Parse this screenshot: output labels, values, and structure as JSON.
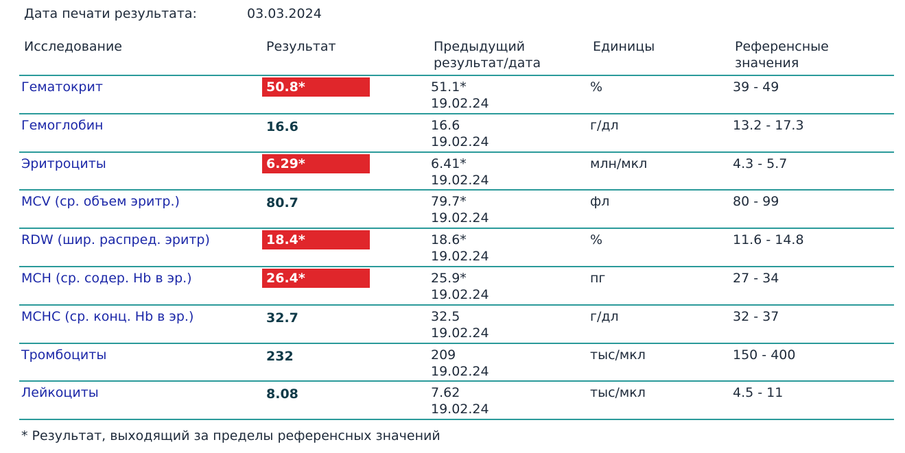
{
  "header": {
    "label": "Дата печати результата:",
    "date": "03.03.2024"
  },
  "table": {
    "columns": [
      "Исследование",
      "Результат",
      "Предыдущий результат/дата",
      "Единицы",
      "Референсные значения"
    ],
    "rows": [
      {
        "name": "Гематокрит",
        "result": "50.8*",
        "flagged": true,
        "previous": "51.1*",
        "previous_date": "19.02.24",
        "units": "%",
        "reference": "39 - 49"
      },
      {
        "name": "Гемоглобин",
        "result": "16.6",
        "flagged": false,
        "previous": "16.6",
        "previous_date": "19.02.24",
        "units": "г/дл",
        "reference": "13.2 - 17.3"
      },
      {
        "name": "Эритроциты",
        "result": "6.29*",
        "flagged": true,
        "previous": "6.41*",
        "previous_date": "19.02.24",
        "units": "млн/мкл",
        "reference": "4.3 - 5.7"
      },
      {
        "name": "MCV (ср. объем эритр.)",
        "result": "80.7",
        "flagged": false,
        "previous": "79.7*",
        "previous_date": "19.02.24",
        "units": "фл",
        "reference": "80 - 99"
      },
      {
        "name": "RDW (шир. распред. эритр)",
        "result": "18.4*",
        "flagged": true,
        "previous": "18.6*",
        "previous_date": "19.02.24",
        "units": "%",
        "reference": "11.6 - 14.8"
      },
      {
        "name": "MCH (ср. содер. Hb в эр.)",
        "result": "26.4*",
        "flagged": true,
        "previous": "25.9*",
        "previous_date": "19.02.24",
        "units": "пг",
        "reference": "27 - 34"
      },
      {
        "name": "MCHC (ср. конц. Hb в эр.)",
        "result": "32.7",
        "flagged": false,
        "previous": "32.5",
        "previous_date": "19.02.24",
        "units": "г/дл",
        "reference": "32 - 37"
      },
      {
        "name": "Тромбоциты",
        "result": "232",
        "flagged": false,
        "previous": "209",
        "previous_date": "19.02.24",
        "units": "тыс/мкл",
        "reference": "150 - 400"
      },
      {
        "name": "Лейкоциты",
        "result": "8.08",
        "flagged": false,
        "previous": "7.62",
        "previous_date": "19.02.24",
        "units": "тыс/мкл",
        "reference": "4.5 - 11"
      }
    ]
  },
  "footnote": "* Результат, выходящий за пределы референсных значений"
}
